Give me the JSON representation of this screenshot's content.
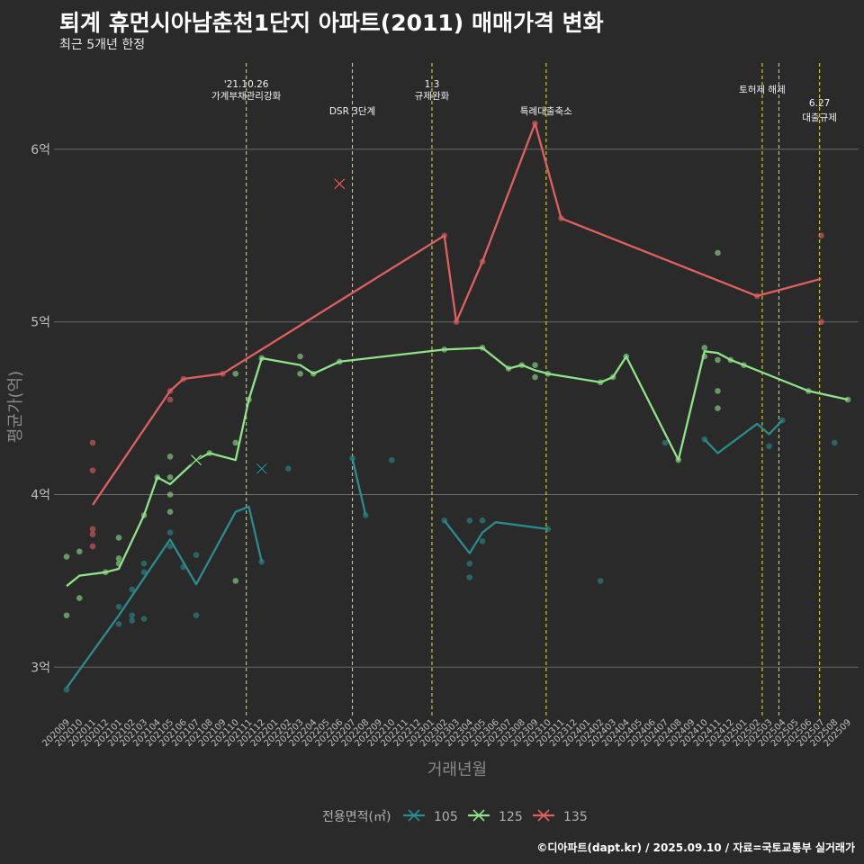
{
  "title": "퇴계 휴먼시아남춘천1단지 아파트(2011) 매매가격 변화",
  "subtitle": "최근 5개년 한정",
  "caption": "©디아파트(dapt.kr) / 2025.09.10 / 자료=국토교통부 실거래가",
  "chart_data": {
    "type": "line",
    "xlabel": "거래년월",
    "ylabel": "평균가(억)",
    "ylim": [
      2.72,
      6.5
    ],
    "yticks": [
      {
        "v": 3,
        "label": "3억"
      },
      {
        "v": 4,
        "label": "4억"
      },
      {
        "v": 5,
        "label": "5억"
      },
      {
        "v": 6,
        "label": "6억"
      }
    ],
    "x_start": "2020-09",
    "x_end": "2025-09",
    "xticks": [
      "202009",
      "202010",
      "202011",
      "202012",
      "202101",
      "202102",
      "202103",
      "202104",
      "202105",
      "202106",
      "202107",
      "202108",
      "202109",
      "202110",
      "202111",
      "202112",
      "202201",
      "202202",
      "202203",
      "202204",
      "202205",
      "202206",
      "202207",
      "202208",
      "202209",
      "202210",
      "202211",
      "202212",
      "202301",
      "202302",
      "202303",
      "202304",
      "202305",
      "202306",
      "202307",
      "202308",
      "202309",
      "202310",
      "202311",
      "202312",
      "202401",
      "202402",
      "202403",
      "202404",
      "202405",
      "202406",
      "202407",
      "202408",
      "202409",
      "202410",
      "202411",
      "202412",
      "202501",
      "202502",
      "202503",
      "202504",
      "202505",
      "202506",
      "202507",
      "202508",
      "202509"
    ],
    "grid": true,
    "legend": {
      "title": "전용면적(㎡)",
      "position": "bottom"
    },
    "events": [
      {
        "date": "2021-10-26",
        "lines": [
          "'21.10.26",
          "가계부채관리강화"
        ]
      },
      {
        "date": "2022-07-01",
        "lines": [
          "DSR 3단계"
        ]
      },
      {
        "date": "2023-01-03",
        "lines": [
          "1.3",
          "규제완화"
        ]
      },
      {
        "date": "2023-09-27",
        "lines": [
          "특례대출축소"
        ]
      },
      {
        "date": "2025-02-13",
        "lines": [
          "토허제 해제"
        ]
      },
      {
        "date": "2025-03-24",
        "lines": []
      },
      {
        "date": "2025-06-27",
        "lines": [
          "6.27",
          "대출규제"
        ]
      }
    ],
    "series": [
      {
        "name": "105",
        "color": "#2a8c8c",
        "line": [
          [
            "2020-09",
            2.88
          ],
          [
            "2021-01",
            3.3
          ],
          [
            "2021-05",
            3.74
          ],
          [
            "2021-07",
            3.48
          ],
          [
            "2021-10",
            3.9
          ],
          [
            "2021-11",
            3.93
          ],
          [
            "2021-12",
            3.61
          ],
          null,
          [
            "2022-07",
            4.21
          ],
          [
            "2022-08",
            3.88
          ],
          null,
          [
            "2023-02",
            3.85
          ],
          [
            "2023-04",
            3.66
          ],
          [
            "2023-05",
            3.78
          ],
          [
            "2023-06",
            3.84
          ],
          [
            "2023-10",
            3.8
          ],
          null,
          [
            "2024-10",
            4.32
          ],
          [
            "2024-11",
            4.24
          ],
          [
            "2025-02",
            4.41
          ],
          [
            "2025-03",
            4.35
          ],
          [
            "2025-04",
            4.43
          ]
        ],
        "points": [
          [
            "2020-09",
            2.87
          ],
          [
            "2021-01",
            3.25
          ],
          [
            "2021-01",
            3.35
          ],
          [
            "2021-02",
            3.27
          ],
          [
            "2021-02",
            3.3
          ],
          [
            "2021-02",
            3.45
          ],
          [
            "2021-03",
            3.28
          ],
          [
            "2021-03",
            3.55
          ],
          [
            "2021-03",
            3.6
          ],
          [
            "2021-05",
            3.7
          ],
          [
            "2021-05",
            3.78
          ],
          [
            "2021-06",
            3.58
          ],
          [
            "2021-07",
            3.3
          ],
          [
            "2021-07",
            3.65
          ],
          [
            "2021-12",
            3.61
          ],
          [
            "2022-02",
            4.15
          ],
          [
            "2022-07",
            4.21
          ],
          [
            "2022-08",
            3.88
          ],
          [
            "2022-10",
            4.2
          ],
          [
            "2023-02",
            3.85
          ],
          [
            "2023-04",
            3.52
          ],
          [
            "2023-04",
            3.6
          ],
          [
            "2023-04",
            3.85
          ],
          [
            "2023-05",
            3.73
          ],
          [
            "2023-05",
            3.85
          ],
          [
            "2023-10",
            3.8
          ],
          [
            "2024-02",
            3.5
          ],
          [
            "2024-07",
            4.3
          ],
          [
            "2024-10",
            4.32
          ],
          [
            "2025-03",
            4.28
          ],
          [
            "2025-04",
            4.43
          ],
          [
            "2025-08",
            4.3
          ]
        ],
        "crosses": [
          [
            "2021-12",
            4.15
          ]
        ]
      },
      {
        "name": "125",
        "color": "#8fe388",
        "line": [
          [
            "2020-09",
            3.47
          ],
          [
            "2020-10",
            3.53
          ],
          [
            "2020-12",
            3.55
          ],
          [
            "2021-01",
            3.57
          ],
          [
            "2021-03",
            3.88
          ],
          [
            "2021-04",
            4.1
          ],
          [
            "2021-05",
            4.06
          ],
          [
            "2021-07",
            4.2
          ],
          [
            "2021-08",
            4.24
          ],
          [
            "2021-10",
            4.2
          ],
          [
            "2021-11",
            4.55
          ],
          [
            "2021-12",
            4.79
          ],
          [
            "2022-03",
            4.75
          ],
          [
            "2022-04",
            4.7
          ],
          [
            "2022-06",
            4.77
          ],
          [
            "2023-02",
            4.84
          ],
          [
            "2023-05",
            4.85
          ],
          [
            "2023-07",
            4.73
          ],
          [
            "2023-08",
            4.75
          ],
          [
            "2023-09",
            4.72
          ],
          [
            "2023-10",
            4.7
          ],
          [
            "2024-02",
            4.65
          ],
          [
            "2024-03",
            4.68
          ],
          [
            "2024-04",
            4.8
          ],
          [
            "2024-08",
            4.2
          ],
          [
            "2024-10",
            4.83
          ],
          [
            "2024-11",
            4.82
          ],
          [
            "2024-12",
            4.78
          ],
          [
            "2025-01",
            4.75
          ],
          [
            "2025-06",
            4.6
          ],
          [
            "2025-09",
            4.55
          ]
        ],
        "points": [
          [
            "2020-09",
            3.64
          ],
          [
            "2020-09",
            3.3
          ],
          [
            "2020-10",
            3.67
          ],
          [
            "2020-10",
            3.4
          ],
          [
            "2020-12",
            3.55
          ],
          [
            "2021-01",
            3.75
          ],
          [
            "2021-01",
            3.63
          ],
          [
            "2021-01",
            3.6
          ],
          [
            "2021-03",
            3.88
          ],
          [
            "2021-04",
            4.1
          ],
          [
            "2021-05",
            4.22
          ],
          [
            "2021-05",
            4.1
          ],
          [
            "2021-05",
            4.0
          ],
          [
            "2021-05",
            3.9
          ],
          [
            "2021-08",
            4.24
          ],
          [
            "2021-10",
            4.7
          ],
          [
            "2021-10",
            4.3
          ],
          [
            "2021-10",
            3.5
          ],
          [
            "2021-11",
            4.55
          ],
          [
            "2021-12",
            4.79
          ],
          [
            "2022-03",
            4.8
          ],
          [
            "2022-03",
            4.7
          ],
          [
            "2022-04",
            4.7
          ],
          [
            "2022-06",
            4.77
          ],
          [
            "2023-02",
            4.84
          ],
          [
            "2023-05",
            4.85
          ],
          [
            "2023-07",
            4.73
          ],
          [
            "2023-08",
            4.75
          ],
          [
            "2023-09",
            4.75
          ],
          [
            "2023-09",
            4.68
          ],
          [
            "2023-10",
            4.7
          ],
          [
            "2024-02",
            4.65
          ],
          [
            "2024-03",
            4.68
          ],
          [
            "2024-04",
            4.8
          ],
          [
            "2024-08",
            4.2
          ],
          [
            "2024-10",
            4.85
          ],
          [
            "2024-10",
            4.8
          ],
          [
            "2024-11",
            5.4
          ],
          [
            "2024-11",
            4.78
          ],
          [
            "2024-11",
            4.6
          ],
          [
            "2024-11",
            4.5
          ],
          [
            "2024-12",
            4.78
          ],
          [
            "2025-01",
            4.75
          ],
          [
            "2025-06",
            4.6
          ],
          [
            "2025-09",
            4.55
          ]
        ],
        "crosses": [
          [
            "2021-07",
            4.2
          ]
        ]
      },
      {
        "name": "135",
        "color": "#e06060",
        "line": [
          [
            "2020-11",
            3.94
          ],
          [
            "2021-05",
            4.6
          ],
          [
            "2021-06",
            4.67
          ],
          [
            "2021-09",
            4.7
          ],
          [
            "2023-02",
            5.5
          ],
          [
            "2023-03",
            5.0
          ],
          [
            "2023-05",
            5.35
          ],
          [
            "2023-09",
            6.15
          ],
          [
            "2023-11",
            5.6
          ],
          [
            "2025-02",
            5.15
          ],
          [
            "2025-07",
            5.25
          ]
        ],
        "points": [
          [
            "2020-11",
            4.3
          ],
          [
            "2020-11",
            4.14
          ],
          [
            "2020-11",
            3.8
          ],
          [
            "2020-11",
            3.77
          ],
          [
            "2020-11",
            3.7
          ],
          [
            "2021-05",
            4.6
          ],
          [
            "2021-05",
            4.55
          ],
          [
            "2021-06",
            4.67
          ],
          [
            "2021-09",
            4.7
          ],
          [
            "2023-02",
            5.5
          ],
          [
            "2023-03",
            5.0
          ],
          [
            "2023-05",
            5.35
          ],
          [
            "2023-09",
            6.15
          ],
          [
            "2023-11",
            5.6
          ],
          [
            "2025-02",
            5.15
          ],
          [
            "2025-07",
            5.5
          ],
          [
            "2025-07",
            5.0
          ]
        ],
        "crosses": [
          [
            "2022-06",
            5.8
          ]
        ]
      }
    ]
  }
}
